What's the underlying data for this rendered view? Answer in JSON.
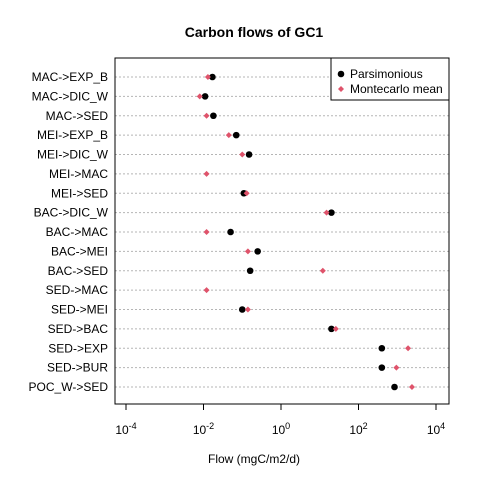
{
  "chart_data": {
    "type": "scatter",
    "title": "Carbon flows of GC1",
    "xlabel": "Flow (mgC/m2/d)",
    "ylabel": "",
    "x_scale": "log10",
    "xlim": [
      5e-05,
      20000
    ],
    "x_ticks": [
      {
        "value": 0.0001,
        "base": "10",
        "exp": "-4"
      },
      {
        "value": 0.01,
        "base": "10",
        "exp": "-2"
      },
      {
        "value": 1,
        "base": "10",
        "exp": "0"
      },
      {
        "value": 100,
        "base": "10",
        "exp": "2"
      },
      {
        "value": 10000,
        "base": "10",
        "exp": "4"
      }
    ],
    "grid": "horizontal dotted",
    "legend_position": "top-right",
    "categories": [
      "MAC->EXP_B",
      "MAC->DIC_W",
      "MAC->SED",
      "MEI->EXP_B",
      "MEI->DIC_W",
      "MEI->MAC",
      "MEI->SED",
      "BAC->DIC_W",
      "BAC->MAC",
      "BAC->MEI",
      "BAC->SED",
      "SED->MAC",
      "SED->MEI",
      "SED->BAC",
      "SED->EXP",
      "SED->BUR",
      "POC_W->SED"
    ],
    "series": [
      {
        "name": "Parsimonious",
        "color": "#000000",
        "marker": "circle",
        "values": [
          0.017,
          0.011,
          0.018,
          0.07,
          0.15,
          null,
          0.11,
          20,
          0.05,
          0.25,
          0.16,
          null,
          0.1,
          20,
          400,
          400,
          850
        ]
      },
      {
        "name": "Montecarlo mean",
        "color": "#DF536B",
        "marker": "diamond",
        "values": [
          0.013,
          0.008,
          0.012,
          0.045,
          0.1,
          0.012,
          0.13,
          15,
          0.012,
          0.14,
          12,
          0.012,
          0.14,
          26,
          1900,
          950,
          2400
        ]
      }
    ]
  }
}
